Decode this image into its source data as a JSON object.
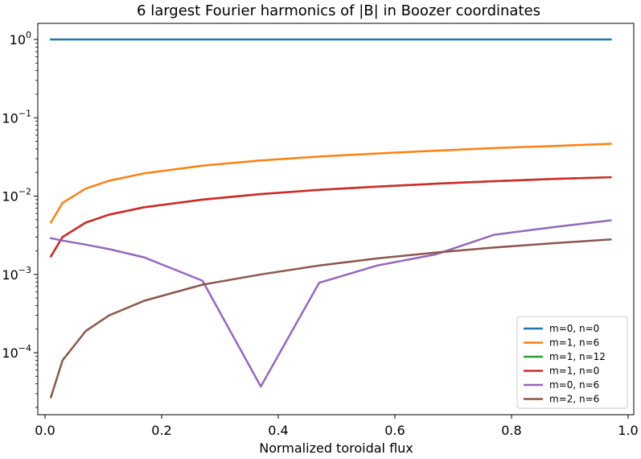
{
  "chart_data": {
    "type": "line",
    "title": "6 largest Fourier harmonics of |B| in Boozer coordinates",
    "xlabel": "Normalized toroidal flux",
    "ylabel": "",
    "yscale": "log",
    "xlim": [
      0.0,
      1.0
    ],
    "ylim": [
      1.5e-05,
      2.0
    ],
    "x_ticks": [
      0.0,
      0.2,
      0.4,
      0.6,
      0.8,
      1.0
    ],
    "x_tick_labels": [
      "0.0",
      "0.2",
      "0.4",
      "0.6",
      "0.8",
      "1.0"
    ],
    "y_ticks": [
      1,
      0.1,
      0.01,
      0.001,
      0.0001
    ],
    "y_tick_labels": [
      {
        "base": "10",
        "exp": "0"
      },
      {
        "base": "10",
        "exp": "−1"
      },
      {
        "base": "10",
        "exp": "−2"
      },
      {
        "base": "10",
        "exp": "−3"
      },
      {
        "base": "10",
        "exp": "−4"
      }
    ],
    "grid": false,
    "legend_position": "lower-right",
    "x": [
      0.01,
      0.03,
      0.07,
      0.11,
      0.17,
      0.27,
      0.37,
      0.47,
      0.57,
      0.67,
      0.77,
      0.87,
      0.97
    ],
    "series": [
      {
        "name": "m=0, n=0",
        "color": "#1f77b4",
        "values": [
          1.0,
          1.0,
          1.0,
          1.0,
          1.0,
          1.0,
          1.0,
          1.0,
          1.0,
          1.0,
          1.0,
          1.0,
          1.0
        ]
      },
      {
        "name": "m=1, n=6",
        "color": "#ff7f0e",
        "values": [
          0.0046,
          0.0082,
          0.0125,
          0.0157,
          0.0195,
          0.0245,
          0.0285,
          0.032,
          0.035,
          0.038,
          0.041,
          0.0435,
          0.0465
        ]
      },
      {
        "name": "m=1, n=12",
        "color": "#2ca02c",
        "values": [
          0.0017,
          0.003,
          0.0046,
          0.0058,
          0.0072,
          0.009,
          0.0106,
          0.012,
          0.0132,
          0.0144,
          0.0155,
          0.0165,
          0.0174
        ]
      },
      {
        "name": "m=1, n=0",
        "color": "#d62728",
        "values": [
          0.0017,
          0.003,
          0.0046,
          0.0058,
          0.0072,
          0.009,
          0.0106,
          0.012,
          0.0132,
          0.0144,
          0.0155,
          0.0165,
          0.0174
        ]
      },
      {
        "name": "m=0, n=6",
        "color": "#9467bd",
        "values": [
          0.0029,
          0.0027,
          0.0024,
          0.0021,
          0.00165,
          0.00083,
          3.7e-05,
          0.00078,
          0.0013,
          0.0018,
          0.0032,
          0.004,
          0.0049
        ]
      },
      {
        "name": "m=2, n=6",
        "color": "#8c564b",
        "values": [
          2.7e-05,
          8e-05,
          0.00019,
          0.0003,
          0.00046,
          0.00074,
          0.001,
          0.0013,
          0.0016,
          0.0019,
          0.0022,
          0.0025,
          0.0028
        ]
      }
    ]
  }
}
